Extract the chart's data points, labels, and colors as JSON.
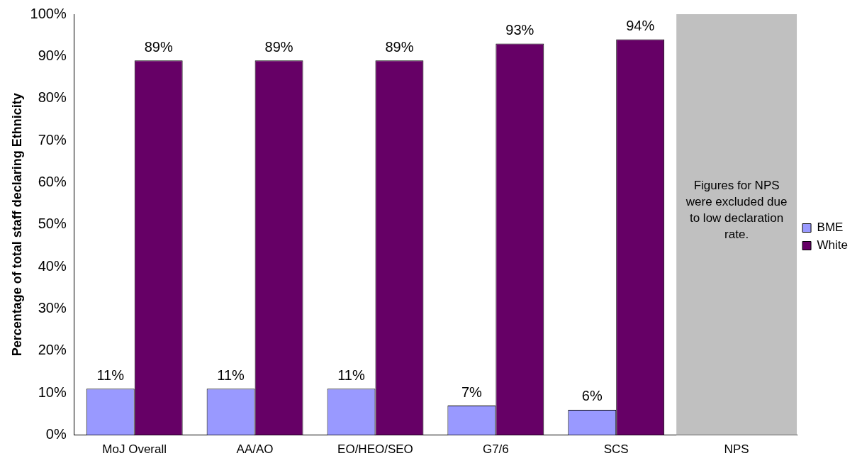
{
  "chart_data": {
    "type": "bar",
    "ylabel": "Percentage of total staff declaring Ethnicity",
    "categories": [
      "MoJ Overall",
      "AA/AO",
      "EO/HEO/SEO",
      "G7/6",
      "SCS",
      "NPS"
    ],
    "series": [
      {
        "name": "BME",
        "color": "#9999ff",
        "values": [
          11,
          11,
          11,
          7,
          6,
          null
        ],
        "value_labels": [
          "11%",
          "11%",
          "11%",
          "7%",
          "6%",
          null
        ]
      },
      {
        "name": "White",
        "color": "#660066",
        "values": [
          89,
          89,
          89,
          93,
          94,
          null
        ],
        "value_labels": [
          "89%",
          "89%",
          "89%",
          "93%",
          "94%",
          null
        ]
      }
    ],
    "ylim": [
      0,
      100
    ],
    "yticks": [
      {
        "value": 0,
        "label": "0%"
      },
      {
        "value": 10,
        "label": "10%"
      },
      {
        "value": 20,
        "label": "20%"
      },
      {
        "value": 30,
        "label": "30%"
      },
      {
        "value": 40,
        "label": "40%"
      },
      {
        "value": 50,
        "label": "50%"
      },
      {
        "value": 60,
        "label": "60%"
      },
      {
        "value": 70,
        "label": "70%"
      },
      {
        "value": 80,
        "label": "80%"
      },
      {
        "value": 90,
        "label": "90%"
      },
      {
        "value": 100,
        "label": "100%"
      }
    ],
    "bands": [
      {
        "axis": "x",
        "from": "NPS",
        "to": "NPS",
        "label": "Figures for NPS were excluded due to low declaration rate.",
        "color": "#c0c0c0"
      }
    ],
    "grid": false,
    "legend": "right"
  }
}
